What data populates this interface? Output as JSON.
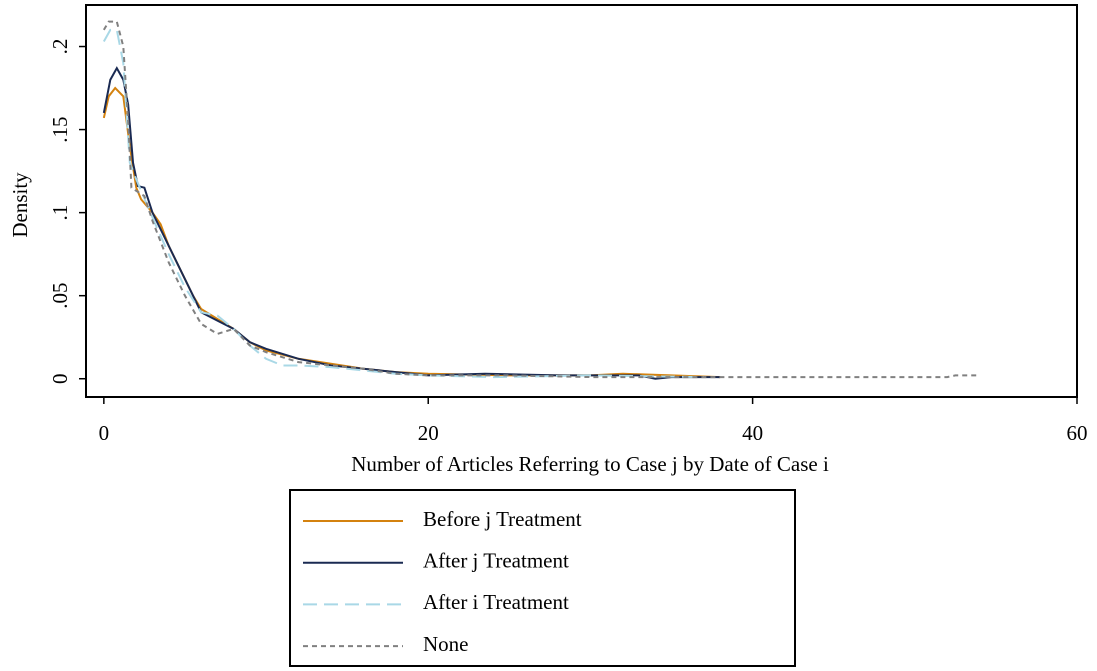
{
  "chart_data": {
    "type": "line",
    "xlabel": "Number of Articles Referring to Case j by Date of Case i",
    "ylabel": "Density",
    "xlim": [
      -1.1,
      60
    ],
    "ylim": [
      -0.011,
      0.225
    ],
    "xticks": [
      0,
      20,
      40,
      60
    ],
    "yticks": [
      0,
      {
        "value": 0.05,
        "label": ".05"
      },
      {
        "value": 0.1,
        "label": ".1"
      },
      {
        "value": 0.15,
        "label": ".15"
      },
      {
        "value": 0.2,
        "label": ".2"
      }
    ],
    "series": [
      {
        "name": "Before j Treatment",
        "color": "#d4820f",
        "dash": "none",
        "x": [
          0,
          0.3,
          0.7,
          1.2,
          1.6,
          2,
          2.3,
          3,
          3.5,
          4,
          4.5,
          5,
          5.5,
          6,
          7,
          8,
          9,
          10,
          12,
          14,
          16,
          18,
          20,
          25,
          30,
          32,
          35,
          38
        ],
        "values": [
          0.157,
          0.17,
          0.175,
          0.17,
          0.14,
          0.115,
          0.108,
          0.1,
          0.093,
          0.08,
          0.07,
          0.06,
          0.05,
          0.042,
          0.036,
          0.03,
          0.022,
          0.017,
          0.012,
          0.009,
          0.006,
          0.004,
          0.003,
          0.002,
          0.002,
          0.003,
          0.002,
          0.001
        ]
      },
      {
        "name": "After j Treatment",
        "color": "#1a2a52",
        "dash": "none",
        "x": [
          0,
          0.4,
          0.8,
          1.2,
          1.5,
          1.8,
          2.1,
          2.5,
          3,
          4,
          5,
          5.5,
          6,
          7,
          8,
          9,
          10,
          12,
          14,
          16,
          18,
          20,
          23.5,
          28,
          33,
          34,
          35,
          38
        ],
        "values": [
          0.16,
          0.18,
          0.187,
          0.18,
          0.165,
          0.13,
          0.116,
          0.115,
          0.1,
          0.08,
          0.06,
          0.05,
          0.04,
          0.035,
          0.03,
          0.022,
          0.018,
          0.012,
          0.008,
          0.006,
          0.004,
          0.002,
          0.003,
          0.002,
          0.002,
          0.0,
          0.001,
          0.001
        ]
      },
      {
        "name": "After i Treatment",
        "color": "#a9d8e6",
        "dash": "14,7",
        "x": [
          0,
          0.4,
          0.8,
          1.2,
          1.6,
          2,
          3,
          4,
          5,
          6,
          7,
          8,
          9,
          10,
          11,
          12,
          14,
          16,
          18,
          20,
          24,
          30,
          37
        ],
        "values": [
          0.203,
          0.21,
          0.21,
          0.19,
          0.13,
          0.12,
          0.097,
          0.075,
          0.055,
          0.04,
          0.038,
          0.03,
          0.02,
          0.012,
          0.008,
          0.008,
          0.007,
          0.005,
          0.003,
          0.002,
          0.001,
          0.002,
          0.001
        ]
      },
      {
        "name": "None",
        "color": "#808080",
        "dash": "5,4",
        "x": [
          0,
          0.3,
          0.8,
          1.2,
          1.5,
          1.7,
          2.5,
          3,
          4,
          5,
          6,
          7,
          8,
          9,
          10,
          12,
          14,
          16,
          18,
          20,
          25,
          30,
          40,
          52,
          52.5,
          54
        ],
        "values": [
          0.21,
          0.215,
          0.215,
          0.2,
          0.155,
          0.115,
          0.11,
          0.095,
          0.07,
          0.05,
          0.033,
          0.027,
          0.03,
          0.02,
          0.016,
          0.01,
          0.008,
          0.006,
          0.003,
          0.002,
          0.002,
          0.001,
          0.001,
          0.001,
          0.002,
          0.002
        ]
      }
    ]
  }
}
